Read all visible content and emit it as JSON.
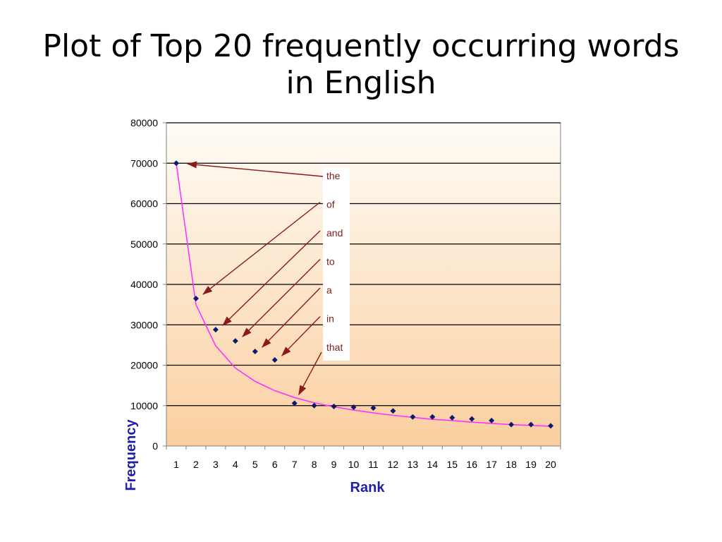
{
  "slide": {
    "title_line1": "Plot of Top 20 frequently occurring words",
    "title_line2": "in English"
  },
  "colors": {
    "point": "#0a1a6e",
    "curve": "#ff33ff",
    "arrow": "#8b1a1a",
    "label_text": "#7a1f1f",
    "axis_title": "#1f1fa8",
    "gradient_top": "#fefcf7",
    "gradient_bottom": "#fbcf9f"
  },
  "chart_data": {
    "type": "scatter",
    "xlabel": "Rank",
    "ylabel": "Frequency",
    "ylim": [
      0,
      80000
    ],
    "yticks": [
      "0",
      "10000",
      "20000",
      "30000",
      "40000",
      "50000",
      "60000",
      "70000",
      "80000"
    ],
    "xticks": [
      "1",
      "2",
      "3",
      "4",
      "5",
      "6",
      "7",
      "8",
      "9",
      "10",
      "11",
      "12",
      "13",
      "14",
      "15",
      "16",
      "17",
      "18",
      "19",
      "20"
    ],
    "grid": true,
    "series": [
      {
        "type": "scatter",
        "x": [
          1,
          2,
          3,
          4,
          5,
          6,
          7,
          8,
          9,
          10,
          11,
          12,
          13,
          14,
          15,
          16,
          17,
          18,
          19,
          20
        ],
        "y": [
          70000,
          36500,
          28800,
          26000,
          23400,
          21300,
          10600,
          10000,
          9800,
          9600,
          9400,
          8700,
          7200,
          7200,
          7000,
          6700,
          6300,
          5300,
          5300,
          5000
        ]
      },
      {
        "type": "line",
        "x": [
          1,
          2,
          3,
          4,
          5,
          6,
          7,
          8,
          9,
          10,
          11,
          12,
          13,
          14,
          15,
          16,
          17,
          18,
          19,
          20
        ],
        "y": [
          70000,
          35000,
          24800,
          19300,
          16000,
          13700,
          12000,
          10700,
          9700,
          8900,
          8200,
          7600,
          7100,
          6600,
          6300,
          5900,
          5600,
          5300,
          5100,
          4900
        ]
      }
    ],
    "annotations": [
      {
        "text": "the",
        "target_rank": 1
      },
      {
        "text": "of",
        "target_rank": 2
      },
      {
        "text": "and",
        "target_rank": 3
      },
      {
        "text": "to",
        "target_rank": 4
      },
      {
        "text": "a",
        "target_rank": 5
      },
      {
        "text": "in",
        "target_rank": 6
      },
      {
        "text": "that",
        "target_rank": 7
      }
    ]
  }
}
